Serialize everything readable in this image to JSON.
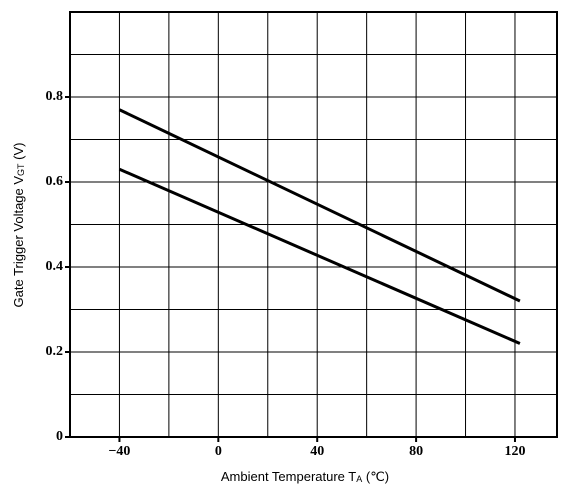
{
  "chart_data": {
    "type": "line",
    "x_label": {
      "text": "Ambient Temperature  T",
      "sub": "A",
      "unit": " (℃)"
    },
    "y_label": {
      "text": "Gate Trigger Voltage  V",
      "sub": "GT",
      "unit": " (V)"
    },
    "series": [
      {
        "color": "#000000",
        "x": [
          -40,
          122
        ],
        "values": [
          0.77,
          0.32
        ]
      },
      {
        "color": "#000000",
        "x": [
          -40,
          122
        ],
        "values": [
          0.63,
          0.22
        ]
      }
    ],
    "xlim": [
      -60,
      137
    ],
    "ylim": [
      0,
      1.0
    ],
    "xticks": [
      {
        "value": -40,
        "label": "−40"
      },
      0,
      40,
      80,
      120
    ],
    "yticks": [
      0,
      0.2,
      0.4,
      0.6,
      0.8
    ],
    "xminor": [
      -60,
      -20,
      20,
      60,
      100
    ],
    "yminor": [
      0.1,
      0.3,
      0.5,
      0.7,
      0.9,
      1.0
    ],
    "grid": true
  }
}
